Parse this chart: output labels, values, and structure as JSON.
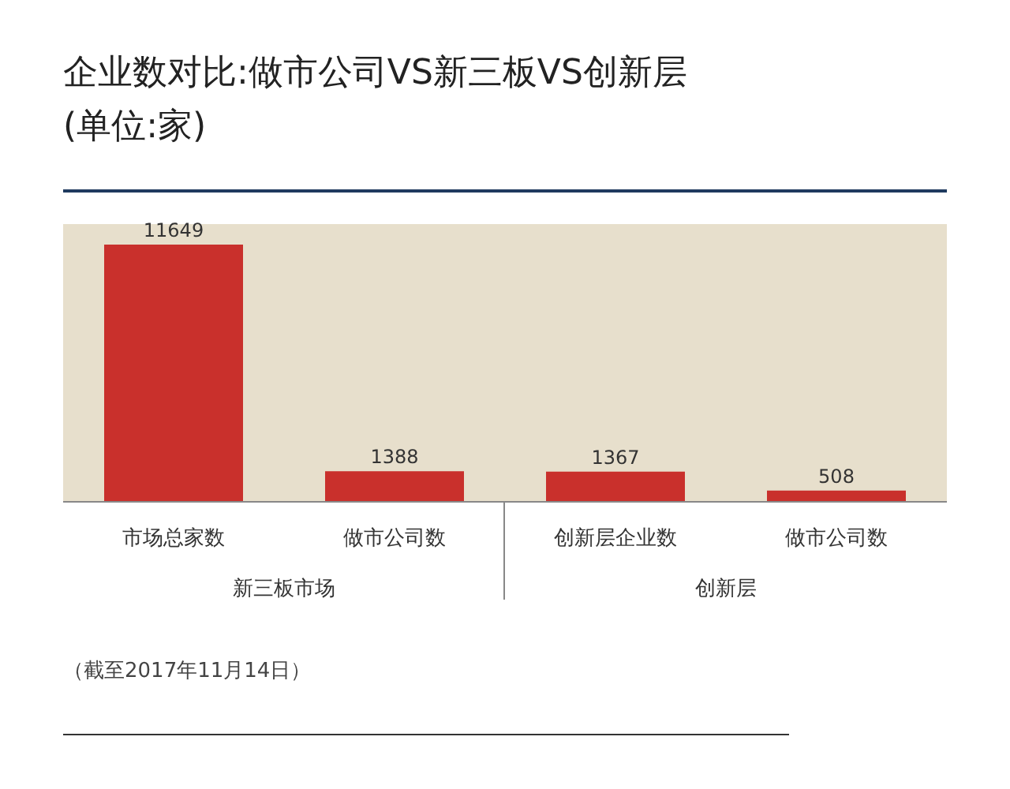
{
  "chart_data": {
    "type": "bar",
    "title": "企业数对比:做市公司VS新三板VS创新层\n(单位:家)",
    "categories": [
      "市场总家数",
      "做市公司数",
      "创新层企业数",
      "做市公司数"
    ],
    "values": [
      11649,
      1388,
      1367,
      508
    ],
    "color": "#c9302c",
    "data_labels": true,
    "annotations": [
      "新三板市场",
      "创新层",
      "（截至2017年11月14日）"
    ]
  }
}
